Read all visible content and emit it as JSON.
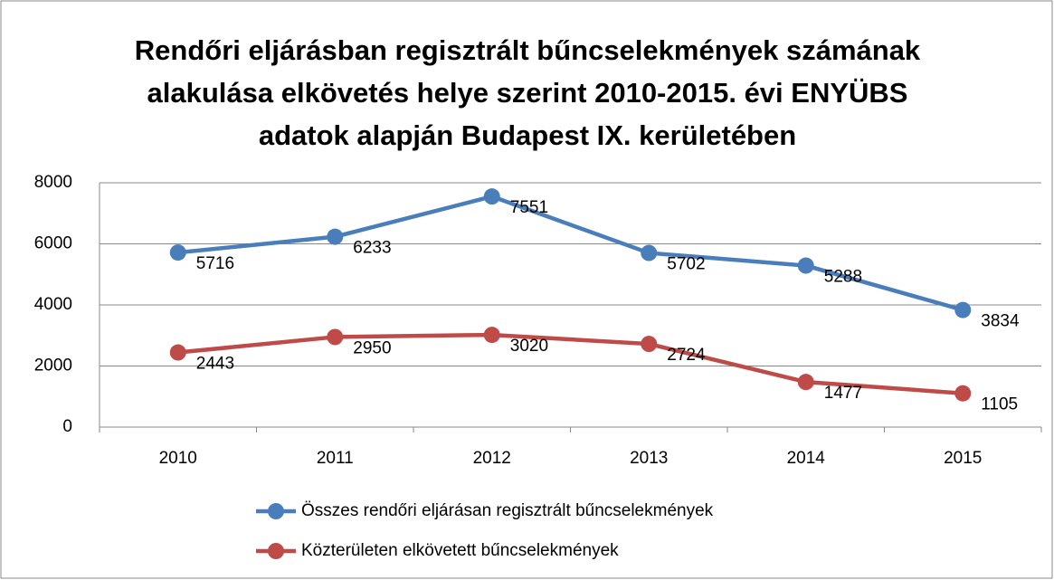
{
  "chart_data": {
    "type": "line",
    "title": [
      "Rendőri eljárásban regisztrált bűncselekmények számának",
      "alakulása elkövetés helye szerint 2010-2015. évi ENYÜBS",
      "adatok alapján Budapest IX. kerületében"
    ],
    "categories": [
      "2010",
      "2011",
      "2012",
      "2013",
      "2014",
      "2015"
    ],
    "series": [
      {
        "name": "Összes rendőri eljárásan regisztrált bűncselekmények",
        "color": "#4a7ebb",
        "values": [
          5716,
          6233,
          7551,
          5702,
          5288,
          3834
        ]
      },
      {
        "name": "Közterületen elkövetett bűncselekmények",
        "color": "#be4b48",
        "values": [
          2443,
          2950,
          3020,
          2724,
          1477,
          1105
        ]
      }
    ],
    "ylim": [
      0,
      8000
    ],
    "yticks": [
      0,
      2000,
      4000,
      6000,
      8000
    ],
    "grid": true,
    "legend": "bottom"
  }
}
